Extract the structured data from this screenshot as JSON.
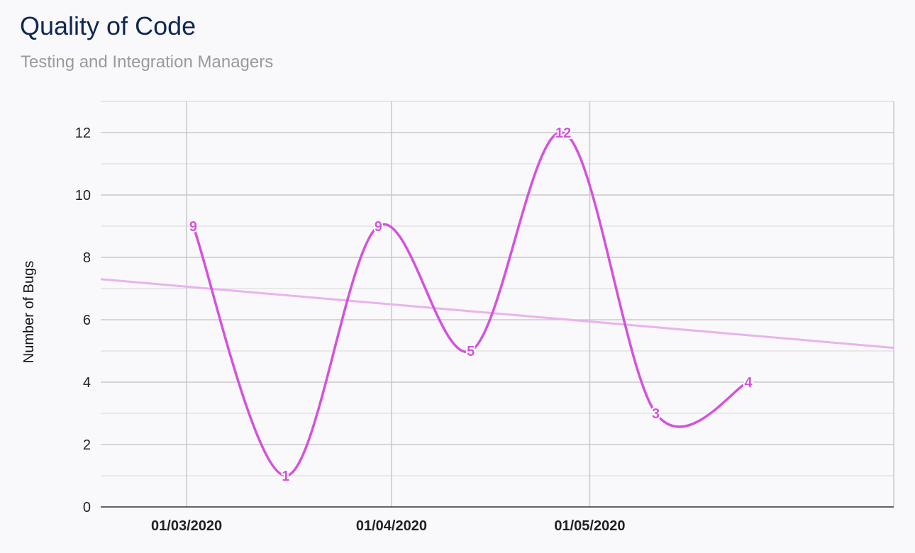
{
  "chart_data": {
    "type": "line",
    "title": "Quality of Code",
    "subtitle": "Testing and Integration Managers",
    "xlabel": "",
    "ylabel": "Number of Bugs",
    "x_ticks": [
      {
        "date": "2020-03-01",
        "label": "01/03/2020"
      },
      {
        "date": "2020-04-01",
        "label": "01/04/2020"
      },
      {
        "date": "2020-05-01",
        "label": "01/05/2020"
      }
    ],
    "xlim": [
      "2020-02-17",
      "2020-06-16"
    ],
    "ylim": [
      0,
      13
    ],
    "y_ticks": [
      0,
      2,
      4,
      6,
      8,
      10,
      12
    ],
    "grid": true,
    "smooth": true,
    "series": [
      {
        "color": "#d452dc",
        "points": [
          {
            "x": "2020-03-02",
            "y": 9
          },
          {
            "x": "2020-03-16",
            "y": 1
          },
          {
            "x": "2020-03-30",
            "y": 9
          },
          {
            "x": "2020-04-13",
            "y": 5
          },
          {
            "x": "2020-04-27",
            "y": 12
          },
          {
            "x": "2020-05-11",
            "y": 3
          },
          {
            "x": "2020-05-25",
            "y": 4
          }
        ]
      }
    ],
    "trendline": {
      "color": "#e9b3ee",
      "type": "linear",
      "from": {
        "x": "2020-02-17",
        "y": 7.3
      },
      "to": {
        "x": "2020-06-16",
        "y": 5.1
      }
    }
  }
}
